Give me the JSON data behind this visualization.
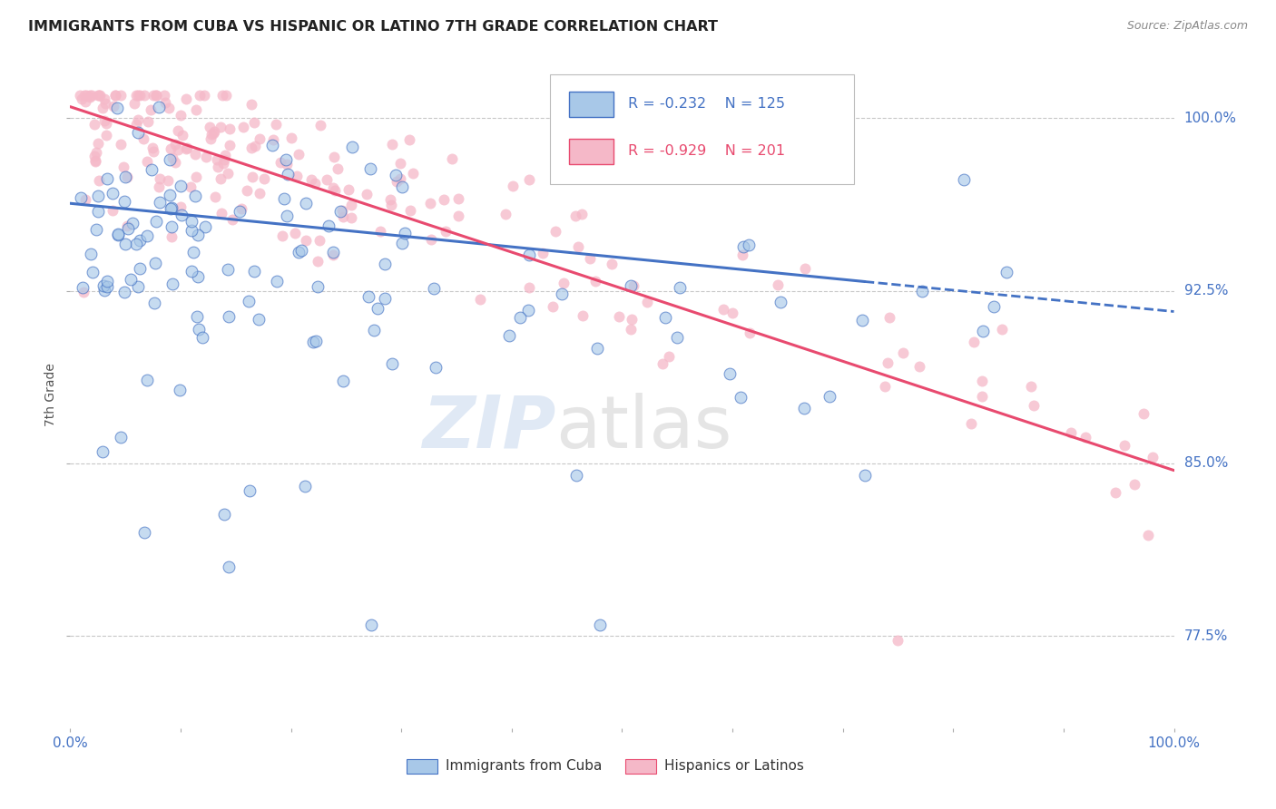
{
  "title": "IMMIGRANTS FROM CUBA VS HISPANIC OR LATINO 7TH GRADE CORRELATION CHART",
  "source_text": "Source: ZipAtlas.com",
  "ylabel": "7th Grade",
  "ytick_labels": [
    "100.0%",
    "92.5%",
    "85.0%",
    "77.5%"
  ],
  "ytick_values": [
    1.0,
    0.925,
    0.85,
    0.775
  ],
  "legend_blue_label": "Immigrants from Cuba",
  "legend_pink_label": "Hispanics or Latinos",
  "blue_color": "#a8c8e8",
  "pink_color": "#f5b8c8",
  "blue_line_color": "#4472c4",
  "pink_line_color": "#e84a6f",
  "xlim": [
    0.0,
    1.0
  ],
  "ylim": [
    0.735,
    1.025
  ],
  "blue_line": [
    0.0,
    0.963,
    0.72,
    0.929
  ],
  "blue_dash": [
    0.72,
    0.929,
    1.0,
    0.916
  ],
  "pink_line": [
    0.0,
    1.005,
    1.0,
    0.847
  ]
}
